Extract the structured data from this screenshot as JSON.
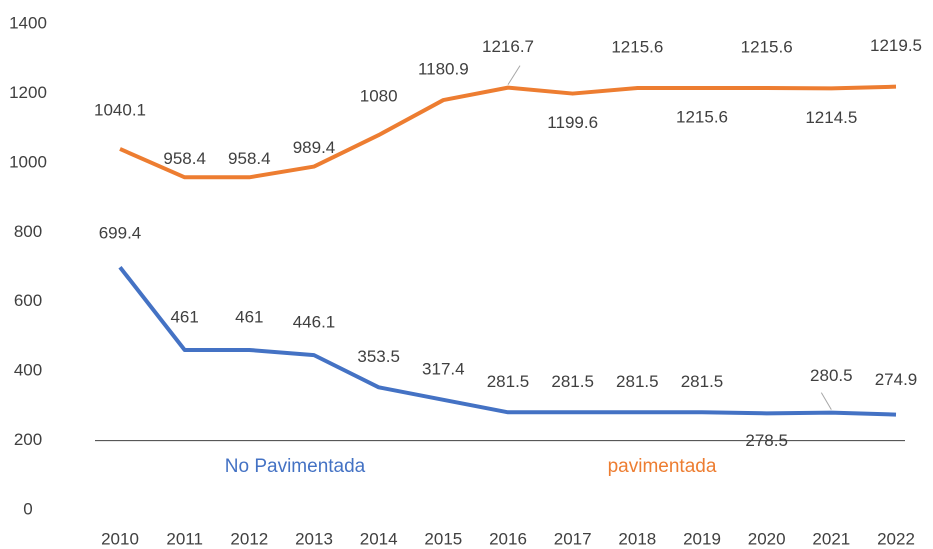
{
  "chart_data": {
    "type": "line",
    "x": [
      2010,
      2011,
      2012,
      2013,
      2014,
      2015,
      2016,
      2017,
      2018,
      2019,
      2020,
      2021,
      2022
    ],
    "series": [
      {
        "name": "No Pavimentada",
        "color": "#4472c4",
        "values": [
          699.4,
          461,
          461,
          446.1,
          353.5,
          317.4,
          281.5,
          281.5,
          281.5,
          281.5,
          278.5,
          280.5,
          274.9
        ]
      },
      {
        "name": "pavimentada",
        "color": "#ed7d31",
        "values": [
          1040.1,
          958.4,
          958.4,
          989.4,
          1080,
          1180.9,
          1216.7,
          1199.6,
          1215.6,
          1215.6,
          1215.6,
          1214.5,
          1219.5
        ]
      }
    ],
    "ylim": [
      0,
      1400
    ],
    "yticks": [
      0,
      200,
      400,
      600,
      800,
      1000,
      1200,
      1400
    ],
    "xaxis_at": 200
  }
}
